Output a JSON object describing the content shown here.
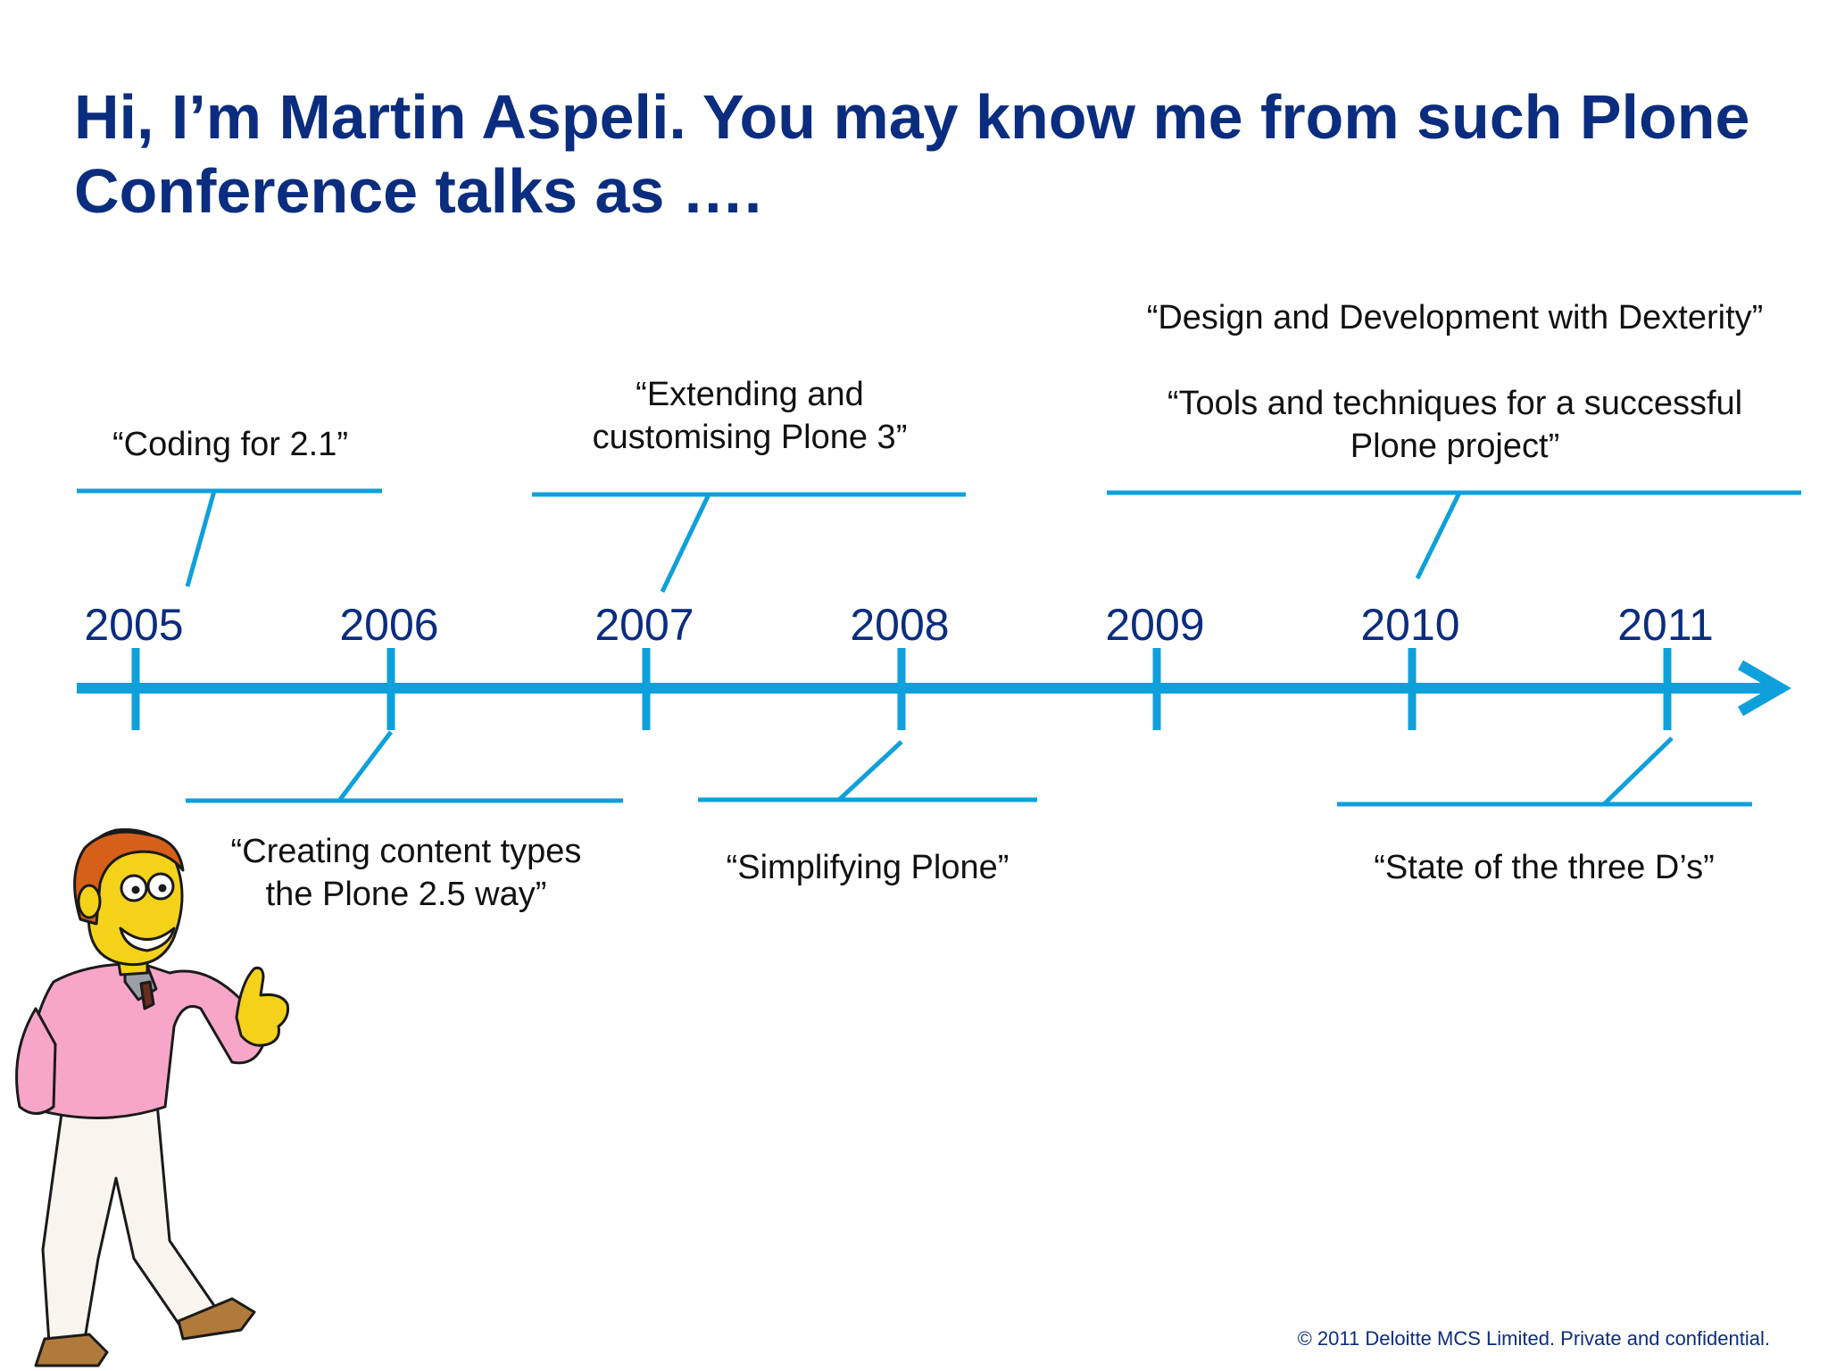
{
  "slide": {
    "title": "Hi, I’m Martin Aspeli. You may know me from such Plone Conference talks as ….",
    "footer": "© 2011 Deloitte MCS Limited. Private and confidential."
  },
  "timeline": {
    "color": "#0ea0db",
    "years": [
      "2005",
      "2006",
      "2007",
      "2008",
      "2009",
      "2010",
      "2011"
    ],
    "talks_above": [
      {
        "lines": [
          "“Coding for 2.1”"
        ]
      },
      {
        "lines": [
          "“Extending and",
          "customising Plone 3”"
        ]
      },
      {
        "lines": [
          "“Design and Development with Dexterity”",
          "",
          "“Tools and techniques for a successful",
          "Plone project”"
        ]
      }
    ],
    "talks_below": [
      {
        "lines": [
          "“Creating content types",
          "the Plone 2.5 way”"
        ]
      },
      {
        "lines": [
          "“Simplifying Plone”"
        ]
      },
      {
        "lines": [
          "“State of the three D’s”"
        ]
      }
    ]
  },
  "illustration": {
    "character": "cartoon presenter in pink sweater pointing right"
  }
}
